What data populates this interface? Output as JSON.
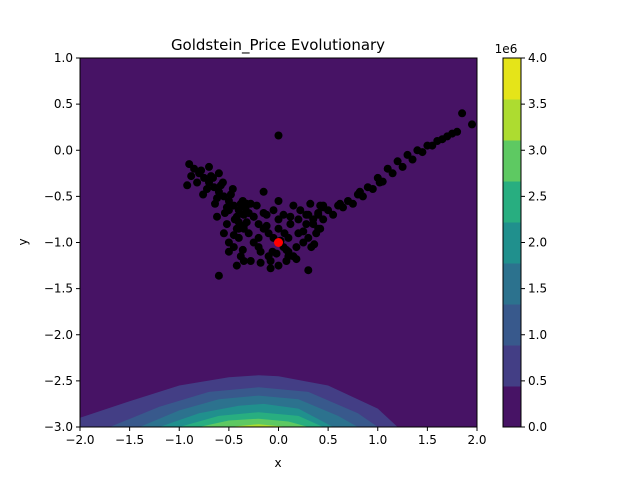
{
  "chart_data": {
    "type": "scatter",
    "title": "Goldstein_Price Evolutionary",
    "xlabel": "x",
    "ylabel": "y",
    "xlim": [
      -2,
      2
    ],
    "ylim": [
      -3,
      1
    ],
    "xticks": [
      "−2.0",
      "−1.5",
      "−1.0",
      "−0.5",
      "0.0",
      "0.5",
      "1.0",
      "1.5",
      "2.0"
    ],
    "yticks": [
      "−3.0",
      "−2.5",
      "−2.0",
      "−1.5",
      "−1.0",
      "−0.5",
      "0.0",
      "0.5",
      "1.0"
    ],
    "grid": false,
    "background": "filled-contour",
    "colorbar": {
      "exponent_label": "1e6",
      "ticks": [
        "0.0",
        "0.5",
        "1.0",
        "1.5",
        "2.0",
        "2.5",
        "3.0",
        "3.5",
        "4.0"
      ],
      "levels": [
        0,
        0.5,
        1.0,
        1.5,
        2.0,
        2.5,
        3.0,
        3.5,
        4.0
      ],
      "colors": [
        "#471365",
        "#433e85",
        "#38598c",
        "#2c728e",
        "#20908d",
        "#28ae80",
        "#5ec962",
        "#addc30",
        "#e5e419"
      ]
    },
    "contour_bands": [
      {
        "level_index": 1,
        "x": [
          -2.0,
          -1.5,
          -1.0,
          -0.5,
          -0.2,
          0.0,
          0.5,
          1.0,
          1.2
        ],
        "y": [
          -2.9,
          -2.72,
          -2.55,
          -2.46,
          -2.44,
          -2.45,
          -2.55,
          -2.8,
          -3.0
        ]
      },
      {
        "level_index": 2,
        "x": [
          -1.7,
          -1.2,
          -0.7,
          -0.2,
          0.3,
          0.8,
          1.0
        ],
        "y": [
          -3.0,
          -2.78,
          -2.62,
          -2.57,
          -2.62,
          -2.85,
          -3.0
        ]
      },
      {
        "level_index": 3,
        "x": [
          -1.4,
          -1.0,
          -0.6,
          -0.2,
          0.2,
          0.6,
          0.8
        ],
        "y": [
          -3.0,
          -2.82,
          -2.7,
          -2.66,
          -2.7,
          -2.88,
          -3.0
        ]
      },
      {
        "level_index": 4,
        "x": [
          -1.2,
          -0.8,
          -0.4,
          -0.15,
          0.2,
          0.55
        ],
        "y": [
          -3.0,
          -2.85,
          -2.77,
          -2.75,
          -2.8,
          -3.0
        ]
      },
      {
        "level_index": 5,
        "x": [
          -1.0,
          -0.6,
          -0.2,
          0.2,
          0.45
        ],
        "y": [
          -3.0,
          -2.88,
          -2.84,
          -2.88,
          -3.0
        ]
      },
      {
        "level_index": 6,
        "x": [
          -0.8,
          -0.5,
          -0.2,
          0.1,
          0.3
        ],
        "y": [
          -3.0,
          -2.93,
          -2.91,
          -2.94,
          -3.0
        ]
      },
      {
        "level_index": 7,
        "x": [
          -0.5,
          -0.2,
          0.1
        ],
        "y": [
          -3.0,
          -2.97,
          -3.0
        ]
      }
    ],
    "series": [
      {
        "name": "",
        "color": "#000000",
        "x": [
          0.0,
          -0.05,
          0.05,
          -0.1,
          0.1,
          -0.15,
          0.15,
          -0.2,
          0.2,
          0.0,
          -0.08,
          0.08,
          -0.12,
          0.12,
          -0.25,
          0.25,
          -0.3,
          0.3,
          0.0,
          -0.05,
          0.05,
          -0.18,
          0.18,
          -0.22,
          0.22,
          -0.35,
          0.35,
          -0.1,
          0.1,
          0.0,
          -0.28,
          0.28,
          -0.4,
          0.4,
          -0.15,
          0.15,
          -0.06,
          0.06,
          -0.32,
          0.32,
          -0.2,
          0.2,
          -0.45,
          0.45,
          -0.38,
          0.38,
          0.0,
          -0.12,
          0.12,
          -0.25,
          0.25,
          -0.02,
          0.02,
          -0.33,
          0.33,
          -0.5,
          -0.42,
          0.42,
          -0.18,
          0.18,
          -0.08,
          0.08,
          -0.28,
          0.28,
          -0.36,
          0.36,
          -0.9,
          -0.85,
          -0.8,
          -0.75,
          -0.7,
          -0.65,
          -0.6,
          -0.55,
          -0.5,
          -0.45,
          -0.4,
          -0.35,
          -0.88,
          -0.78,
          -0.68,
          -0.58,
          -0.48,
          -0.38,
          -0.72,
          -0.62,
          -0.52,
          -0.42,
          -0.82,
          -0.66,
          -0.56,
          -0.46,
          -0.36,
          -0.76,
          -0.64,
          -0.54,
          -0.44,
          -0.34,
          -0.92,
          -0.7,
          -0.6,
          -0.5,
          -0.4,
          -0.3,
          -0.62,
          -0.52,
          -0.42,
          -0.32,
          -0.55,
          -0.45,
          -0.35,
          -0.25,
          0.3,
          0.4,
          0.5,
          0.6,
          0.7,
          0.8,
          0.9,
          1.0,
          1.1,
          1.2,
          1.3,
          1.4,
          1.5,
          1.6,
          1.7,
          1.8,
          1.95,
          0.35,
          0.45,
          0.55,
          0.65,
          0.75,
          0.85,
          0.95,
          1.05,
          1.15,
          1.25,
          1.35,
          1.45,
          1.55,
          1.65,
          1.75,
          1.85,
          0.42,
          0.62,
          0.82,
          1.02,
          0.0,
          -0.6,
          -0.4,
          -0.15,
          0.4,
          -0.35,
          0.3,
          -0.5,
          0.45,
          0.1,
          -0.2
        ],
        "y": [
          -1.0,
          -0.95,
          -1.05,
          -0.9,
          -1.1,
          -0.85,
          -1.15,
          -0.8,
          -0.9,
          -0.75,
          -1.2,
          -1.2,
          -0.7,
          -0.8,
          -1.0,
          -1.0,
          -0.9,
          -0.95,
          -1.25,
          -0.65,
          -0.7,
          -1.1,
          -1.05,
          -0.6,
          -0.65,
          -0.85,
          -0.75,
          -1.15,
          -0.95,
          -0.55,
          -1.2,
          -0.8,
          -0.95,
          -0.7,
          -0.68,
          -0.6,
          -1.1,
          -0.9,
          -0.78,
          -0.58,
          -0.95,
          -0.75,
          -1.05,
          -0.62,
          -1.15,
          -0.9,
          -0.85,
          -0.82,
          -0.72,
          -0.72,
          -0.88,
          -1.12,
          -0.98,
          -0.62,
          -1.05,
          -1.0,
          -1.25,
          -0.85,
          -1.22,
          -1.18,
          -1.28,
          -1.08,
          -0.58,
          -0.7,
          -1.08,
          -1.02,
          -0.15,
          -0.2,
          -0.25,
          -0.3,
          -0.35,
          -0.4,
          -0.45,
          -0.5,
          -0.55,
          -0.6,
          -0.65,
          -0.7,
          -0.28,
          -0.22,
          -0.28,
          -0.38,
          -0.48,
          -0.58,
          -0.42,
          -0.52,
          -0.62,
          -0.72,
          -0.35,
          -0.3,
          -0.35,
          -0.42,
          -0.55,
          -0.48,
          -0.58,
          -0.68,
          -0.75,
          -0.62,
          -0.38,
          -0.18,
          -0.25,
          -0.65,
          -0.78,
          -0.68,
          -0.72,
          -0.8,
          -0.85,
          -0.58,
          -0.9,
          -0.92,
          -0.82,
          -0.72,
          -0.7,
          -0.68,
          -0.65,
          -0.6,
          -0.55,
          -0.48,
          -0.4,
          -0.3,
          -0.2,
          -0.12,
          -0.05,
          0.0,
          0.05,
          0.1,
          0.15,
          0.2,
          0.28,
          -0.8,
          -0.75,
          -0.7,
          -0.62,
          -0.58,
          -0.5,
          -0.42,
          -0.34,
          -0.25,
          -0.18,
          -0.1,
          -0.02,
          0.05,
          0.12,
          0.18,
          0.4,
          -0.6,
          -0.58,
          -0.45,
          -0.35,
          0.16,
          -1.36,
          -0.85,
          -0.45,
          -0.85,
          -1.2,
          -1.3,
          -1.1,
          -0.6,
          -1.15,
          -1.05
        ]
      },
      {
        "name": "",
        "color": "#ff0000",
        "x": [
          0.0
        ],
        "y": [
          -1.0
        ]
      }
    ]
  }
}
